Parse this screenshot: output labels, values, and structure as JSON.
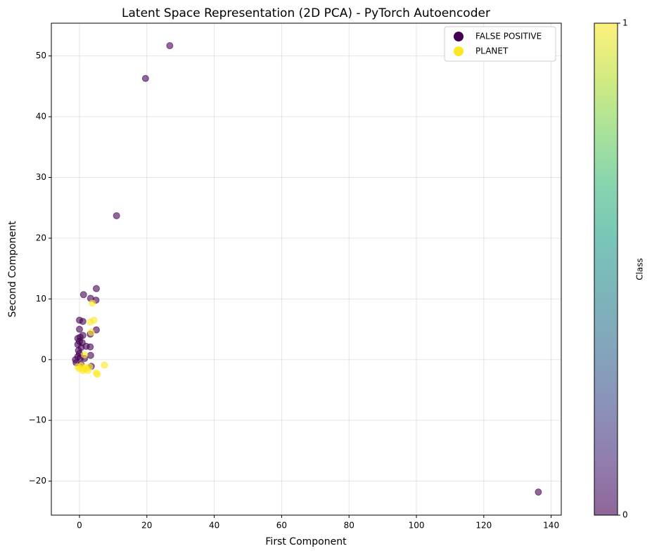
{
  "chart_data": {
    "type": "scatter",
    "title": "Latent Space Representation (2D PCA) - PyTorch Autoencoder",
    "x_label": "First Component",
    "y_label": "Second Component",
    "xlim": [
      -8.35,
      143.0
    ],
    "ylim": [
      -25.6,
      55.4
    ],
    "xticks": [
      0,
      20,
      40,
      60,
      80,
      100,
      120,
      140
    ],
    "yticks": [
      {
        "value": -20,
        "label": "−20"
      },
      {
        "value": -10,
        "label": "−10"
      },
      0,
      10,
      20,
      30,
      40,
      50
    ],
    "grid": true,
    "legend": "upper right",
    "alpha": 0.6,
    "series": [
      {
        "name": "FALSE POSITIVE",
        "color": "#440154",
        "x": [
          26.8,
          19.6,
          11.0,
          136.2,
          1.2,
          5.0,
          3.3,
          4.9,
          0,
          1.0,
          0,
          5,
          3.2,
          1,
          -0.5,
          0,
          -0.5,
          0.5,
          2,
          3.2,
          -0.3,
          0,
          -0.5,
          1.5,
          3.3,
          -1,
          0.5,
          3.5,
          -1.2,
          0.3,
          0.8,
          0.2
        ],
        "y": [
          51.7,
          46.3,
          23.7,
          -21.8,
          10.7,
          11.7,
          10.1,
          9.8,
          6.5,
          6.3,
          5.0,
          4.9,
          4.2,
          4.0,
          3.5,
          3,
          2.5,
          2,
          2.2,
          2.1,
          1.5,
          1,
          0.5,
          0.2,
          0.7,
          -0.5,
          -0.8,
          -1.1,
          0,
          0.3,
          2.8,
          3.7
        ]
      },
      {
        "name": "PLANET",
        "color": "#fde725",
        "x": [
          3.8,
          4.3,
          3.2,
          3.5,
          7.4,
          5,
          5.3,
          2,
          1,
          0,
          -0.5,
          1.5,
          2.5,
          3,
          0.5,
          1.8,
          1.2
        ],
        "y": [
          9.3,
          6.5,
          6.2,
          4.5,
          -0.9,
          -2.2,
          -2.4,
          -1.5,
          -1.8,
          -1.5,
          -1.2,
          0.8,
          -1.8,
          -1.2,
          -1,
          -1.3,
          -1.5
        ]
      }
    ],
    "colorbar": {
      "label": "Class",
      "lim": [
        0,
        1
      ],
      "ticks": [
        0,
        1
      ],
      "colors": [
        "#440154",
        "#482878",
        "#3e4989",
        "#31688e",
        "#26828e",
        "#1f9e89",
        "#35b779",
        "#6ece58",
        "#b5de2b",
        "#fde725"
      ]
    }
  }
}
